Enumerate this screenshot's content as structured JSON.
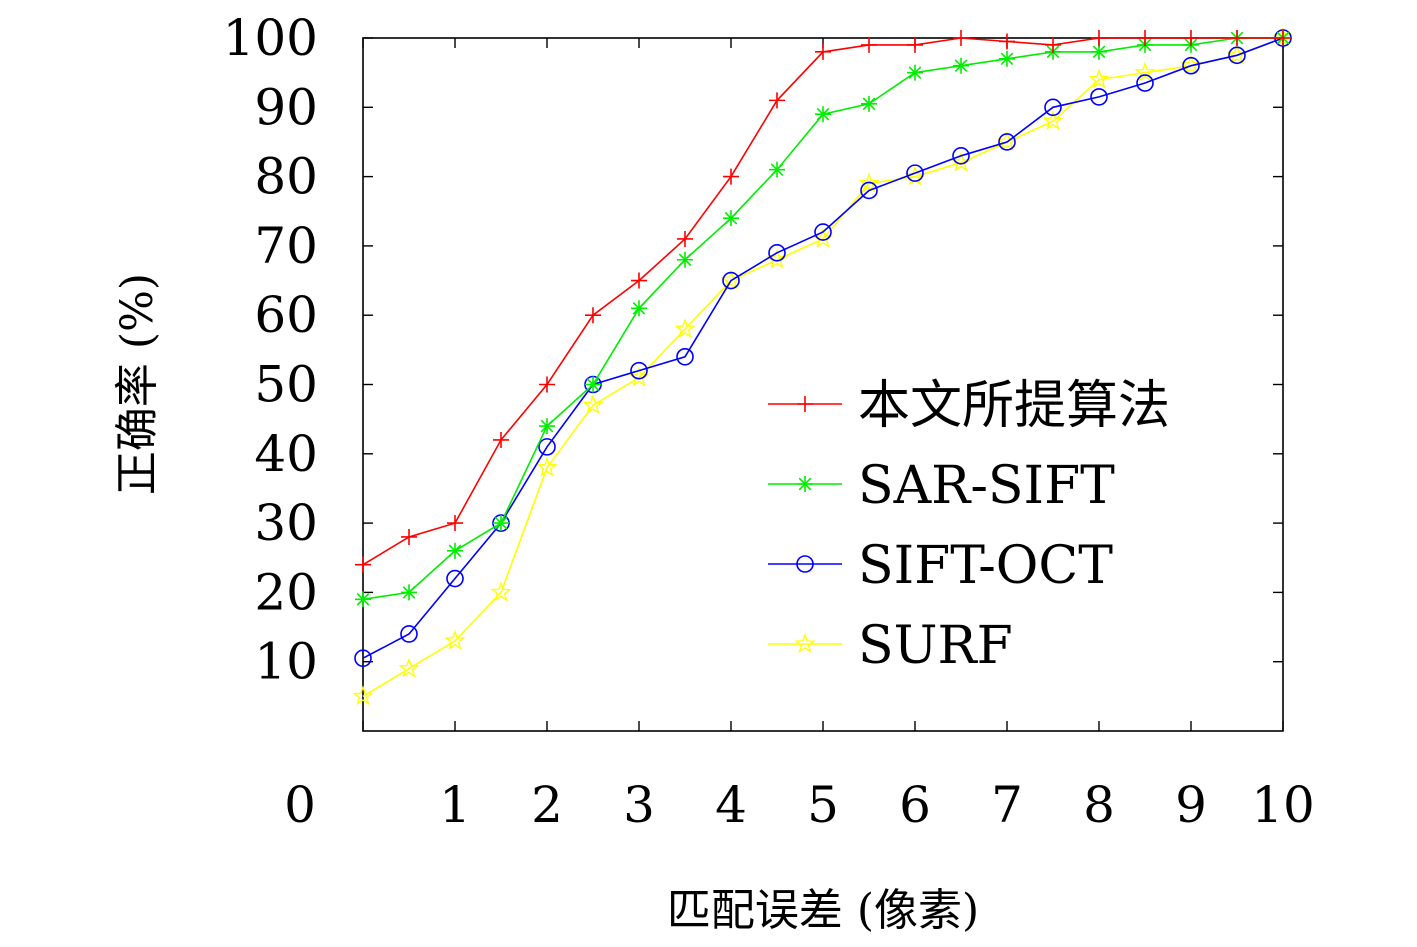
{
  "chart_data": {
    "type": "line",
    "title": "",
    "xlabel": "匹配误差 (像素)",
    "ylabel": "正确率 (%)",
    "xlim": [
      0,
      10
    ],
    "ylim": [
      0,
      100
    ],
    "x_ticks": [
      0,
      1,
      2,
      3,
      4,
      5,
      6,
      7,
      8,
      9,
      10
    ],
    "y_ticks": [
      10,
      20,
      30,
      40,
      50,
      60,
      70,
      80,
      90,
      100
    ],
    "legend_position": "right",
    "grid": false,
    "x": [
      0,
      0.5,
      1,
      1.5,
      2,
      2.5,
      3,
      3.5,
      4,
      4.5,
      5,
      5.5,
      6,
      6.5,
      7,
      7.5,
      8,
      8.5,
      9,
      9.5,
      10
    ],
    "series": [
      {
        "name": "本文所提算法",
        "color": "#ff0000",
        "marker": "plus",
        "values": [
          24,
          28,
          30,
          42,
          50,
          60,
          65,
          71,
          80,
          91,
          98,
          99,
          99,
          100,
          99.5,
          99,
          100,
          100,
          100,
          100,
          100
        ]
      },
      {
        "name": "SAR-SIFT",
        "color": "#00ee00",
        "marker": "asterisk",
        "values": [
          19,
          20,
          26,
          30,
          44,
          50,
          61,
          68,
          74,
          81,
          89,
          90.5,
          95,
          96,
          97,
          98,
          98,
          99,
          99,
          100,
          100
        ]
      },
      {
        "name": "SIFT-OCT",
        "color": "#0000ff",
        "marker": "circle",
        "values": [
          10.5,
          14,
          22,
          30,
          41,
          50,
          52,
          54,
          65,
          69,
          72,
          78,
          80.5,
          83,
          85,
          90,
          91.5,
          93.5,
          96,
          97.5,
          100
        ]
      },
      {
        "name": "SURF",
        "color": "#ffff00",
        "marker": "star",
        "values": [
          5,
          9,
          13,
          20,
          38,
          47,
          51,
          58,
          65,
          68,
          71,
          79,
          80,
          82,
          85,
          88,
          94,
          95,
          96,
          97.5,
          100
        ]
      }
    ]
  }
}
